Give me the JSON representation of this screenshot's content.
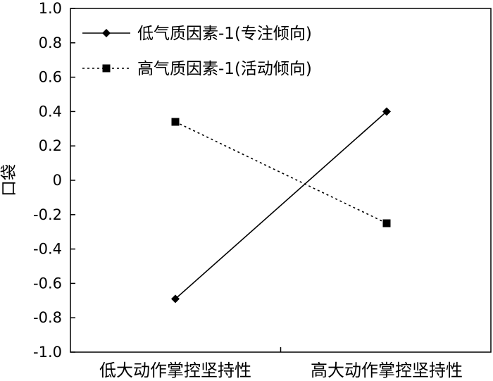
{
  "chart_data": {
    "type": "line",
    "title": "",
    "xlabel": "",
    "ylabel": "口袋",
    "categories": [
      "低大动作掌控坚持性",
      "高大动作掌控坚持性"
    ],
    "ylim": [
      -1.0,
      1.0
    ],
    "ytick_labels": [
      "1.0",
      "0.8",
      "0.6",
      "0.4",
      "0.2",
      "0",
      "-0.2",
      "-0.4",
      "-0.6",
      "-0.8",
      "-1.0"
    ],
    "yticks": [
      1.0,
      0.8,
      0.6,
      0.4,
      0.2,
      0,
      -0.2,
      -0.4,
      -0.6,
      -0.8,
      -1.0
    ],
    "series": [
      {
        "name": "低气质因素-1(专注倾向)",
        "values": [
          -0.69,
          0.4
        ],
        "style": "solid",
        "marker": "diamond"
      },
      {
        "name": "高气质因素-1(活动倾向)",
        "values": [
          0.34,
          -0.25
        ],
        "style": "dotted",
        "marker": "square"
      }
    ],
    "legend_position": "top-left",
    "grid": false,
    "color": "#000000"
  }
}
